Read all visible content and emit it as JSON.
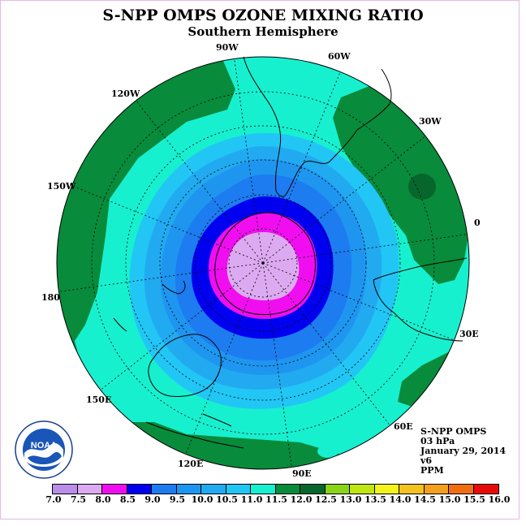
{
  "title": "S-NPP OMPS OZONE MIXING RATIO",
  "subtitle": "Southern Hemisphere",
  "longitude_labels": [
    "90W",
    "60W",
    "120W",
    "30W",
    "150W",
    "0",
    "180",
    "30E",
    "150E",
    "60E",
    "120E",
    "90E"
  ],
  "info": {
    "instrument": "S-NPP OMPS",
    "level": "03 hPa",
    "date": "January 29, 2014",
    "version": "v6",
    "units": "PPM"
  },
  "logo": {
    "text": "NOAA"
  },
  "colorbar": {
    "ticks": [
      "7.0",
      "7.5",
      "8.0",
      "8.5",
      "9.0",
      "9.5",
      "10.0",
      "10.5",
      "11.0",
      "11.5",
      "12.0",
      "12.5",
      "13.0",
      "13.5",
      "14.0",
      "14.5",
      "15.0",
      "15.5",
      "16.0"
    ],
    "colors": [
      "#b98de8",
      "#dcaaf0",
      "#f00ef0",
      "#0000f0",
      "#1d7cf0",
      "#1e96f0",
      "#22aaf0",
      "#21c6f5",
      "#17f0cf",
      "#088b3b",
      "#07662c",
      "#8ad417",
      "#c0e612",
      "#f4f41c",
      "#f4c21e",
      "#f4a01c",
      "#f06e12",
      "#e80a0a",
      "#a8524a"
    ]
  },
  "colors": {
    "green": "#088b3b",
    "dark_green": "#07662c",
    "cyan": "#17f0cf",
    "ring_10_5": "#21c6f5",
    "ring_10_0": "#22aaf0",
    "ring_9_5": "#1e96f0",
    "ring_9_0": "#1d7cf0",
    "ring_8_5": "#0000f0",
    "ring_8_0": "#f00ef0",
    "ring_7_5": "#dcaaf0"
  }
}
